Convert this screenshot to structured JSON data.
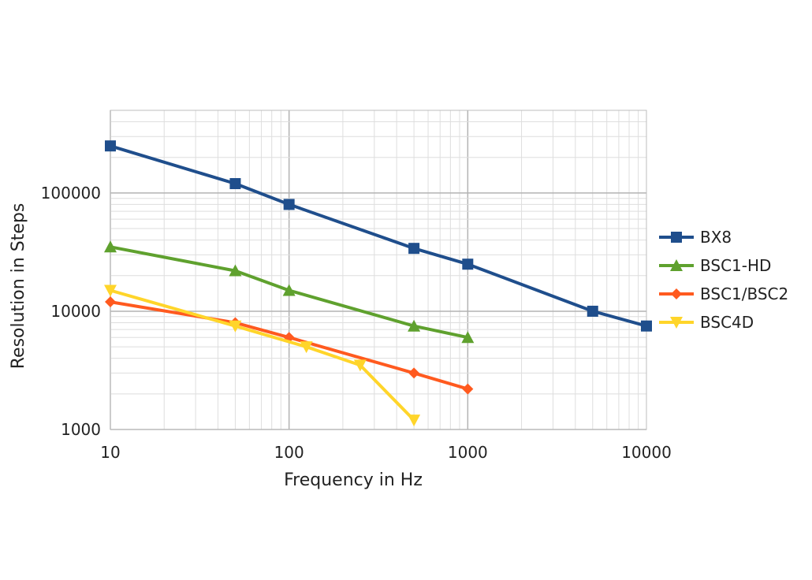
{
  "chart_data": {
    "type": "line",
    "title": "",
    "xlabel": "Frequency in Hz",
    "ylabel": "Resolution in Steps",
    "x_scale": "log",
    "y_scale": "log",
    "xlim": [
      10,
      10000
    ],
    "ylim": [
      1000,
      500000
    ],
    "x_ticks": [
      10,
      100,
      1000,
      10000
    ],
    "x_tick_labels": [
      "10",
      "100",
      "1000",
      "10000"
    ],
    "y_ticks": [
      1000,
      10000,
      100000
    ],
    "y_tick_labels": [
      "1000",
      "10000",
      "100000"
    ],
    "grid": true,
    "legend_position": "right",
    "series": [
      {
        "name": "BX8",
        "color": "#1f4e8c",
        "marker": "square",
        "points": [
          [
            10,
            250000
          ],
          [
            50,
            120000
          ],
          [
            100,
            80000
          ],
          [
            500,
            34000
          ],
          [
            1000,
            25000
          ],
          [
            5000,
            10000
          ],
          [
            10000,
            7500
          ]
        ]
      },
      {
        "name": "BSC1-HD",
        "color": "#5fa12e",
        "marker": "triangle-up",
        "points": [
          [
            10,
            35000
          ],
          [
            50,
            22000
          ],
          [
            100,
            15000
          ],
          [
            500,
            7500
          ],
          [
            1000,
            6000
          ]
        ]
      },
      {
        "name": "BSC1/BSC2",
        "color": "#ff5a1f",
        "marker": "diamond",
        "points": [
          [
            10,
            12000
          ],
          [
            50,
            8000
          ],
          [
            100,
            6000
          ],
          [
            500,
            3000
          ],
          [
            1000,
            2200
          ]
        ]
      },
      {
        "name": "BSC4D",
        "color": "#ffd52a",
        "marker": "triangle-down",
        "points": [
          [
            10,
            15000
          ],
          [
            50,
            7500
          ],
          [
            125,
            5000
          ],
          [
            250,
            3500
          ],
          [
            500,
            1200
          ]
        ]
      }
    ]
  }
}
